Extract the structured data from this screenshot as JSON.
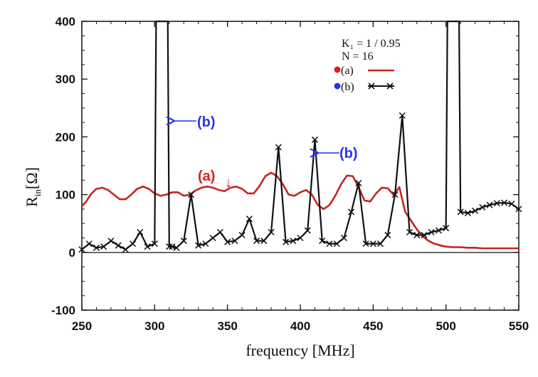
{
  "chart_data": {
    "type": "line",
    "xlabel": "frequency [MHz]",
    "ylabel_main": "R",
    "ylabel_sub": "in",
    "ylabel_unit": "[Ω]",
    "xlim": [
      250,
      550
    ],
    "ylim": [
      -100,
      400
    ],
    "xticks": [
      250,
      300,
      350,
      400,
      450,
      500,
      550
    ],
    "xtick_labels": [
      "250",
      "300",
      "350",
      "400",
      "450",
      "500",
      "550"
    ],
    "yticks": [
      -100,
      0,
      100,
      200,
      300,
      400
    ],
    "ytick_labels": [
      "-100",
      "0",
      "100",
      "200",
      "300",
      "400"
    ],
    "grid": false,
    "legend_position": "top-right",
    "params": [
      "K₁ = 1 / 0.95",
      "N = 16"
    ],
    "colors": {
      "a": "#c42525",
      "b": "#111111",
      "dot_a": "#e01c1c",
      "dot_b": "#2a35e0"
    },
    "series": [
      {
        "name": "(a)",
        "marker": "none",
        "x": [
          250,
          253,
          256,
          260,
          264,
          268,
          272,
          276,
          280,
          284,
          288,
          292,
          296,
          300,
          304,
          308,
          312,
          316,
          320,
          324,
          328,
          332,
          336,
          340,
          344,
          348,
          352,
          356,
          360,
          364,
          368,
          372,
          376,
          380,
          384,
          388,
          392,
          396,
          400,
          404,
          408,
          412,
          416,
          420,
          424,
          428,
          432,
          436,
          440,
          444,
          448,
          452,
          456,
          460,
          464,
          468,
          472,
          476,
          480,
          484,
          488,
          492,
          496,
          500,
          505,
          510,
          515,
          520,
          525,
          530,
          535,
          540,
          545,
          550
        ],
        "values": [
          80,
          88,
          100,
          110,
          112,
          108,
          100,
          92,
          92,
          100,
          110,
          114,
          110,
          102,
          98,
          100,
          104,
          104,
          98,
          100,
          107,
          112,
          114,
          112,
          108,
          106,
          112,
          114,
          110,
          102,
          102,
          115,
          132,
          138,
          132,
          118,
          100,
          98,
          104,
          108,
          100,
          82,
          75,
          82,
          98,
          118,
          133,
          132,
          113,
          90,
          88,
          102,
          112,
          111,
          100,
          113,
          70,
          55,
          40,
          28,
          20,
          15,
          12,
          10,
          9,
          9,
          8,
          8,
          7,
          7,
          7,
          7,
          7,
          7
        ]
      },
      {
        "name": "(b)",
        "marker": "x",
        "x": [
          250,
          255,
          260,
          265,
          270,
          275,
          280,
          285,
          290,
          295,
          300,
          301,
          309,
          310,
          312,
          315,
          320,
          325,
          330,
          335,
          340,
          345,
          350,
          355,
          360,
          365,
          370,
          375,
          380,
          385,
          390,
          395,
          400,
          405,
          410,
          415,
          420,
          425,
          430,
          435,
          440,
          445,
          450,
          455,
          460,
          465,
          470,
          475,
          480,
          485,
          490,
          495,
          500,
          501,
          509,
          510,
          515,
          520,
          525,
          530,
          535,
          540,
          545,
          550
        ],
        "values": [
          5,
          15,
          8,
          10,
          20,
          12,
          5,
          15,
          35,
          10,
          15,
          400,
          400,
          10,
          10,
          8,
          20,
          100,
          12,
          15,
          25,
          35,
          18,
          20,
          30,
          58,
          20,
          20,
          35,
          182,
          18,
          20,
          25,
          38,
          195,
          20,
          15,
          15,
          25,
          70,
          120,
          15,
          15,
          15,
          30,
          100,
          237,
          35,
          30,
          30,
          35,
          38,
          42,
          400,
          400,
          70,
          68,
          72,
          78,
          82,
          85,
          86,
          84,
          75
        ]
      }
    ],
    "annotations": [
      {
        "label": "(a)",
        "arrow": "↓",
        "series": "(a)",
        "x": 350,
        "y": 114
      },
      {
        "label": "(b)",
        "arrow": "←",
        "series": "(b)",
        "x": 310,
        "y": 230
      },
      {
        "label": "(b)",
        "arrow": "←",
        "series": "(b)",
        "x": 410,
        "y": 175
      }
    ]
  }
}
